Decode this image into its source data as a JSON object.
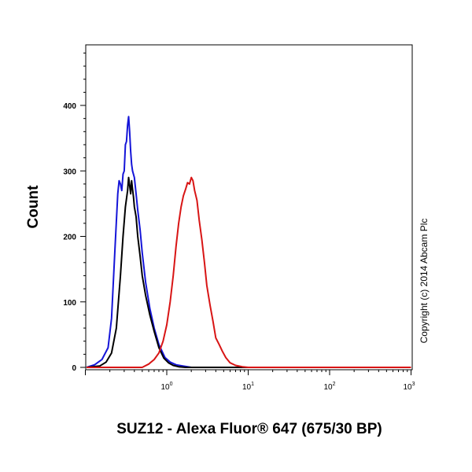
{
  "chart_data": {
    "type": "line",
    "xlabel": "SUZ12 - Alexa Fluor® 647 (675/30 BP)",
    "ylabel": "Count",
    "x_scale": "log",
    "xlim": [
      0.1,
      1000
    ],
    "ylim": [
      0,
      490
    ],
    "y_ticks": [
      "0",
      "100",
      "200",
      "300",
      "400"
    ],
    "x_ticks": [
      {
        "base": "10",
        "exp": "0",
        "value": 1
      },
      {
        "base": "10",
        "exp": "1",
        "value": 10
      },
      {
        "base": "10",
        "exp": "2",
        "value": 100
      },
      {
        "base": "10",
        "exp": "3",
        "value": 1000
      }
    ],
    "grid": false,
    "annotation": "Copyright (c) 2014 Abcam Plc",
    "series": [
      {
        "color": "#1515d8",
        "x": [
          0.1,
          0.13,
          0.16,
          0.19,
          0.21,
          0.23,
          0.25,
          0.26,
          0.27,
          0.28,
          0.29,
          0.3,
          0.31,
          0.32,
          0.33,
          0.34,
          0.35,
          0.36,
          0.37,
          0.38,
          0.4,
          0.42,
          0.44,
          0.47,
          0.5,
          0.55,
          0.62,
          0.7,
          0.8,
          0.95,
          1.1,
          1.3,
          1.6,
          2.0,
          3.0,
          1000
        ],
        "y": [
          0,
          4,
          12,
          30,
          75,
          175,
          265,
          285,
          280,
          270,
          295,
          300,
          340,
          345,
          370,
          383,
          360,
          330,
          310,
          300,
          290,
          265,
          240,
          210,
          175,
          130,
          90,
          60,
          35,
          15,
          8,
          4,
          2,
          0,
          0,
          0
        ]
      },
      {
        "color": "#000000",
        "x": [
          0.1,
          0.15,
          0.18,
          0.21,
          0.24,
          0.27,
          0.29,
          0.31,
          0.33,
          0.34,
          0.35,
          0.36,
          0.37,
          0.38,
          0.39,
          0.4,
          0.42,
          0.44,
          0.47,
          0.5,
          0.55,
          0.62,
          0.7,
          0.8,
          0.92,
          1.05,
          1.2,
          1.4,
          1.7,
          2.2,
          3.0,
          1000
        ],
        "y": [
          0,
          2,
          8,
          22,
          60,
          140,
          200,
          245,
          270,
          290,
          278,
          265,
          285,
          272,
          260,
          245,
          230,
          200,
          170,
          140,
          110,
          80,
          55,
          30,
          14,
          7,
          3,
          1,
          0,
          0,
          0,
          0
        ]
      },
      {
        "color": "#d81515",
        "x": [
          0.1,
          0.5,
          0.6,
          0.7,
          0.8,
          0.9,
          1.0,
          1.1,
          1.2,
          1.3,
          1.4,
          1.5,
          1.6,
          1.7,
          1.8,
          1.9,
          2.0,
          2.1,
          2.2,
          2.35,
          2.5,
          2.7,
          2.9,
          3.1,
          3.4,
          3.7,
          4.0,
          4.4,
          4.8,
          5.3,
          6.0,
          7.0,
          8.5,
          10.0,
          1000
        ],
        "y": [
          0,
          0,
          5,
          12,
          22,
          40,
          65,
          100,
          140,
          185,
          220,
          245,
          262,
          272,
          282,
          280,
          290,
          285,
          270,
          255,
          225,
          195,
          160,
          125,
          95,
          70,
          45,
          35,
          25,
          15,
          7,
          3,
          1,
          0,
          0
        ]
      }
    ]
  }
}
